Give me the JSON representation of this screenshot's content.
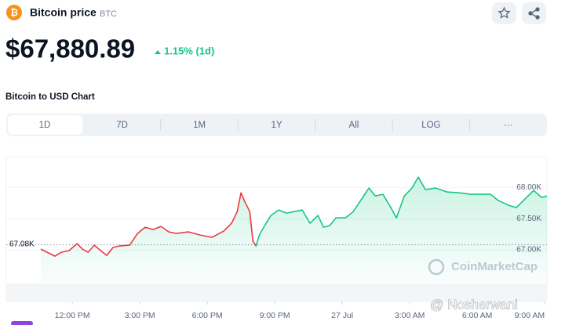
{
  "header": {
    "title": "Bitcoin price",
    "symbol": "BTC",
    "price": "$67,880.89",
    "change": "1.15% (1d)",
    "section": "Bitcoin to USD Chart"
  },
  "tabs": [
    "1D",
    "7D",
    "1M",
    "1Y",
    "All",
    "LOG",
    "···"
  ],
  "selected_tab": "1D",
  "watermarks": [
    "CoinMarketCap",
    "@ Nosherwani"
  ],
  "chart_data": {
    "type": "line",
    "x": [
      10.6,
      10.88,
      11.23,
      11.51,
      11.86,
      12.21,
      12.45,
      12.7,
      12.98,
      13.26,
      13.53,
      13.81,
      14.09,
      14.55,
      14.9,
      15.24,
      15.59,
      15.94,
      16.29,
      16.64,
      17.16,
      17.69,
      18.21,
      18.73,
      19.08,
      19.33,
      19.5,
      19.68,
      19.89,
      20.03,
      20.17,
      20.31,
      20.51,
      20.83,
      21.17,
      21.52,
      21.87,
      22.22,
      22.57,
      22.92,
      23.16,
      23.44,
      23.72,
      24.14,
      24.49,
      24.84,
      25.19,
      25.47,
      25.81,
      26.16,
      26.41,
      26.76,
      27.1,
      27.38,
      27.7,
      28.15,
      28.67,
      29.2,
      29.72,
      30.14,
      30.59,
      30.94,
      31.4,
      31.74,
      32.09,
      32.51,
      32.86,
      33.1
    ],
    "series": [
      {
        "name": "BTC/USD",
        "color": "#16c784",
        "down_color": "#ea3943",
        "values": [
          67012,
          66962,
          66900,
          66962,
          66988,
          67100,
          67012,
          66962,
          67075,
          66988,
          66912,
          67038,
          67062,
          67075,
          67262,
          67362,
          67325,
          67375,
          67288,
          67262,
          67288,
          67238,
          67200,
          67300,
          67425,
          67612,
          67912,
          67762,
          67612,
          67138,
          67062,
          67238,
          67362,
          67550,
          67638,
          67588,
          67612,
          67638,
          67425,
          67550,
          67362,
          67388,
          67512,
          67512,
          67612,
          67800,
          67988,
          67862,
          67888,
          67675,
          67512,
          67862,
          67988,
          68162,
          67962,
          67988,
          67925,
          67912,
          67888,
          67888,
          67888,
          67788,
          67712,
          67675,
          67800,
          67950,
          67838,
          67862
        ]
      }
    ],
    "baseline": {
      "value": 67080,
      "label": "67.08K"
    },
    "xlim": [
      10.6,
      33.1
    ],
    "xticks": [
      {
        "value": 12,
        "label": "12:00 PM"
      },
      {
        "value": 15,
        "label": "3:00 PM"
      },
      {
        "value": 18,
        "label": "6:00 PM"
      },
      {
        "value": 21,
        "label": "9:00 PM"
      },
      {
        "value": 24,
        "label": "27 Jul"
      },
      {
        "value": 27,
        "label": "3:00 AM"
      },
      {
        "value": 30,
        "label": "6:00 AM"
      },
      {
        "value": 33,
        "label": "9:00 AM"
      }
    ],
    "ylim": [
      66175,
      68490
    ],
    "yticks": [
      {
        "value": 67000,
        "label": "67.00K"
      },
      {
        "value": 67500,
        "label": "67.50K"
      },
      {
        "value": 68000,
        "label": "68.00K"
      }
    ],
    "grid": true
  }
}
